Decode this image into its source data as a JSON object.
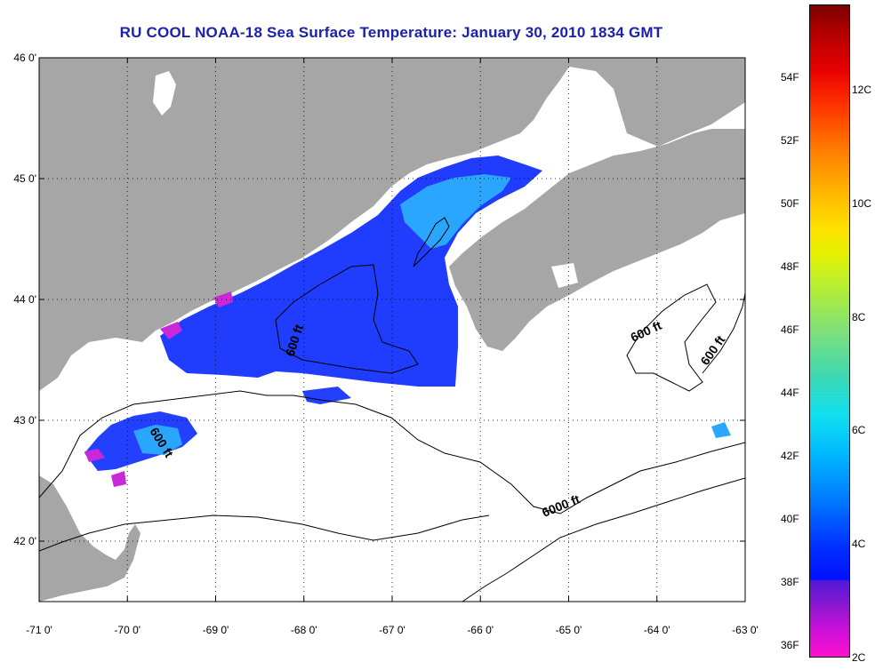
{
  "title": "RU COOL  NOAA-18  Sea Surface Temperature:  January 30, 2010 1834 GMT",
  "map": {
    "lon_range": [
      -71,
      -63
    ],
    "lat_range": [
      41.5,
      46
    ],
    "lat_ticks": [
      {
        "value": 46,
        "label": "46 0'"
      },
      {
        "value": 45,
        "label": "45 0'"
      },
      {
        "value": 44,
        "label": "44 0'"
      },
      {
        "value": 43,
        "label": "43 0'"
      },
      {
        "value": 42,
        "label": "42 0'"
      }
    ],
    "lon_ticks": [
      {
        "value": -71,
        "label": "-71 0'"
      },
      {
        "value": -70,
        "label": "-70 0'"
      },
      {
        "value": -69,
        "label": "-69 0'"
      },
      {
        "value": -68,
        "label": "-68 0'"
      },
      {
        "value": -67,
        "label": "-67 0'"
      },
      {
        "value": -66,
        "label": "-66 0'"
      },
      {
        "value": -65,
        "label": "-65 0'"
      },
      {
        "value": -64,
        "label": "-64 0'"
      },
      {
        "value": -63,
        "label": "-63 0'"
      }
    ],
    "contour_labels": [
      "600 ft",
      "600 ft",
      "600 ft",
      "600 ft",
      "6000 ft"
    ],
    "colors": {
      "land": "#a6a6a6",
      "cloud": "#ffffff",
      "warm_water": "#1a3cff",
      "cool_water": "#26a8ff",
      "coldest": "#c828d8"
    }
  },
  "colorbar": {
    "fahrenheit": [
      {
        "value": 54,
        "label": "54F"
      },
      {
        "value": 52,
        "label": "52F"
      },
      {
        "value": 50,
        "label": "50F"
      },
      {
        "value": 48,
        "label": "48F"
      },
      {
        "value": 46,
        "label": "46F"
      },
      {
        "value": 44,
        "label": "44F"
      },
      {
        "value": 42,
        "label": "42F"
      },
      {
        "value": 40,
        "label": "40F"
      },
      {
        "value": 38,
        "label": "38F"
      },
      {
        "value": 36,
        "label": "36F"
      }
    ],
    "celsius": [
      {
        "value": 12,
        "label": "12C"
      },
      {
        "value": 10,
        "label": "10C"
      },
      {
        "value": 8,
        "label": "8C"
      },
      {
        "value": 6,
        "label": "6C"
      },
      {
        "value": 4,
        "label": "4C"
      },
      {
        "value": 2,
        "label": "2C"
      }
    ]
  }
}
